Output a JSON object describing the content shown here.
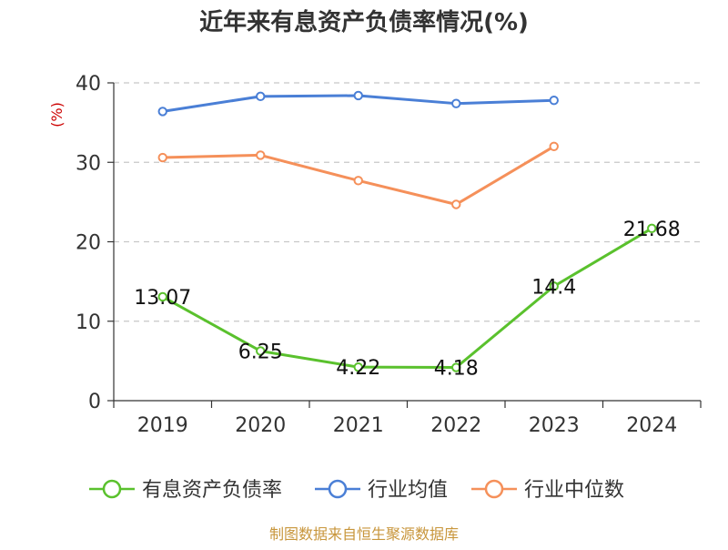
{
  "chart_data": {
    "type": "line",
    "title": "近年来有息资产负债率情况(%)",
    "ylabel": "(%)",
    "categories": [
      "2019",
      "2020",
      "2021",
      "2022",
      "2023",
      "2024"
    ],
    "ylim": [
      0,
      40
    ],
    "yticks": [
      0,
      10,
      20,
      30,
      40
    ],
    "grid": true,
    "legend_position": "bottom",
    "series": [
      {
        "name": "有息资产负债率",
        "color": "#5ac12d",
        "values": [
          13.07,
          6.25,
          4.22,
          4.18,
          14.4,
          21.68
        ],
        "labels": [
          "13.07",
          "6.25",
          "4.22",
          "4.18",
          "14.4",
          "21.68"
        ]
      },
      {
        "name": "行业均值",
        "color": "#4a7fd6",
        "values": [
          36.4,
          38.3,
          38.4,
          37.4,
          37.8,
          null
        ]
      },
      {
        "name": "行业中位数",
        "color": "#f5905a",
        "values": [
          30.6,
          30.9,
          27.7,
          24.7,
          32.0,
          null
        ]
      }
    ],
    "source": "制图数据来自恒生聚源数据库"
  }
}
